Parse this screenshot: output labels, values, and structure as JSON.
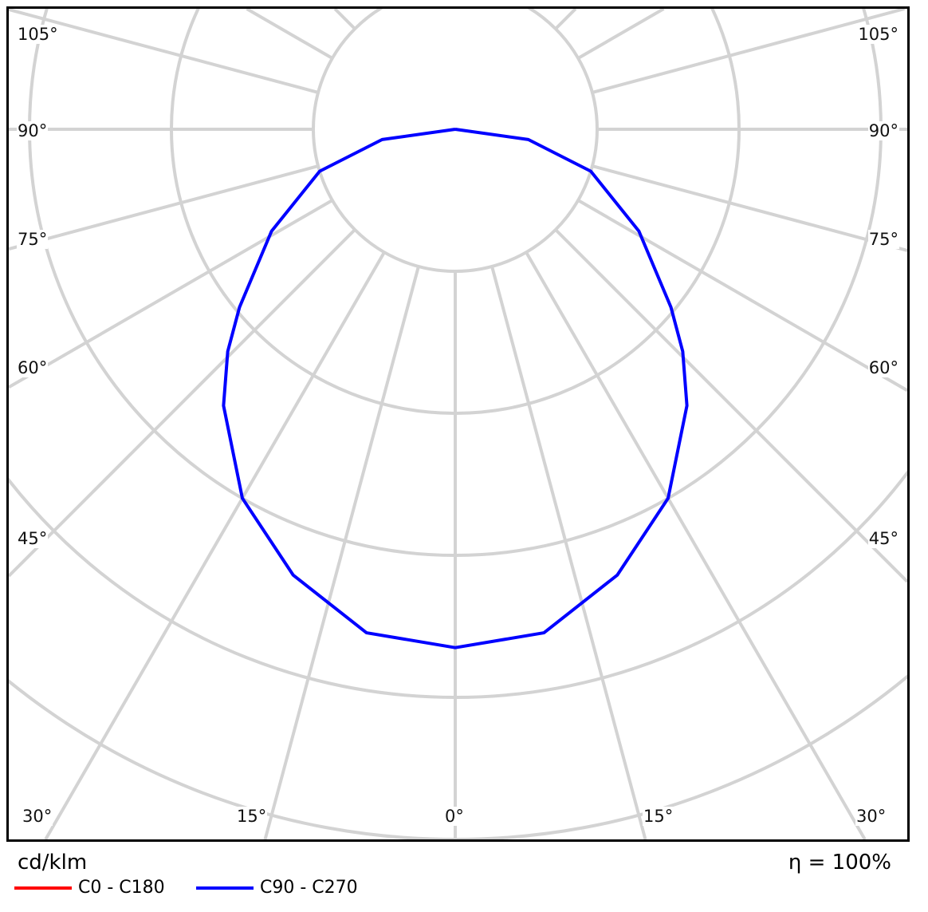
{
  "chart_data": {
    "type": "polar-line",
    "unit": "cd/klm",
    "efficiency_label": "η = 100%",
    "angle_labels_left": [
      "105°",
      "90°",
      "75°",
      "60°",
      "45°"
    ],
    "angle_labels_right": [
      "105°",
      "90°",
      "75°",
      "60°",
      "45°"
    ],
    "angle_labels_bottom": [
      "30°",
      "15°",
      "0°",
      "15°",
      "30°"
    ],
    "angle_step_deg": 15,
    "radial_scale_note": "values relative to ring spacing (ring labels not legible)",
    "angles_deg": [
      0,
      10,
      20,
      30,
      40,
      45.7,
      50.5,
      61,
      72.8,
      82,
      90
    ],
    "series": [
      {
        "name": "C0 - C180",
        "color": "#ff0000",
        "values": [
          3.65,
          3.6,
          3.34,
          3.0,
          2.54,
          2.24,
          1.97,
          1.48,
          1.0,
          0.52,
          0.0
        ]
      },
      {
        "name": "C90 - C270",
        "color": "#0000ff",
        "values": [
          3.65,
          3.6,
          3.34,
          3.0,
          2.54,
          2.24,
          1.97,
          1.48,
          1.0,
          0.52,
          0.0
        ]
      }
    ],
    "grid": true,
    "legend_placement": "bottom-left"
  }
}
